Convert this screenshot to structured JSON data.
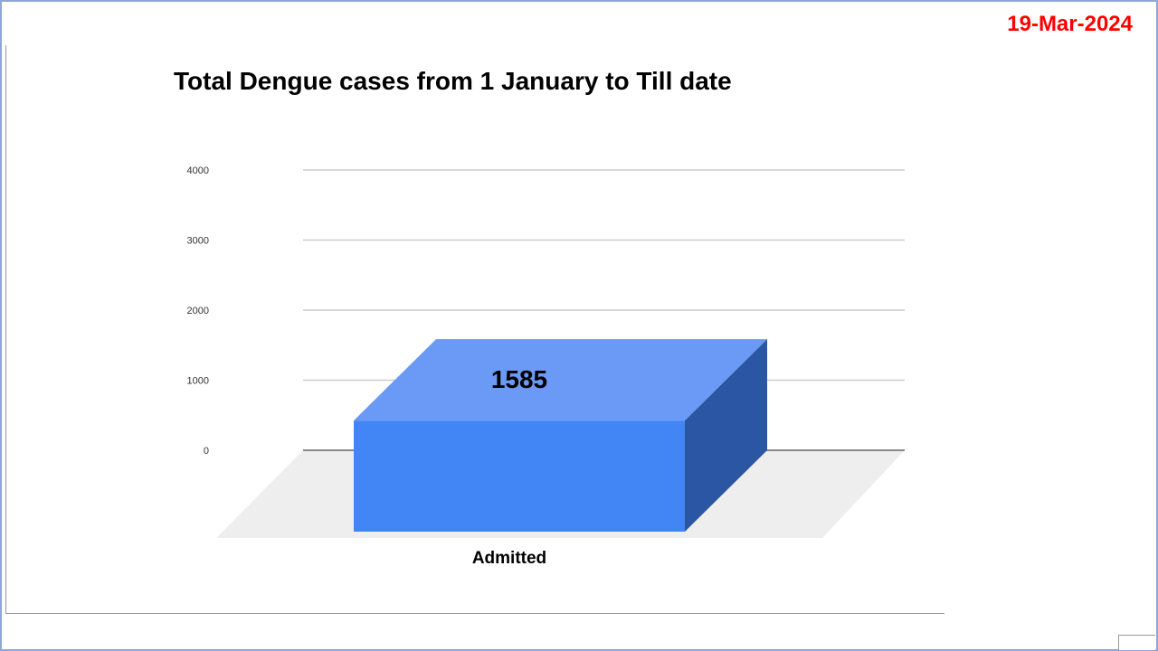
{
  "header": {
    "date": "19-Mar-2024"
  },
  "chart_data": {
    "type": "bar",
    "title": "Total Dengue cases from 1 January to Till date",
    "categories": [
      "Admitted"
    ],
    "values": [
      1585
    ],
    "data_labels": [
      "1585"
    ],
    "y_ticks": [
      "0",
      "1000",
      "2000",
      "3000",
      "4000"
    ],
    "ylim": [
      0,
      4000
    ],
    "grid": true,
    "xlabel": "",
    "ylabel": "",
    "style": "3d",
    "colors": {
      "front": "#4285f4",
      "top": "#6a9af5",
      "side": "#2a56a3",
      "floor": "#eeeeee"
    }
  }
}
